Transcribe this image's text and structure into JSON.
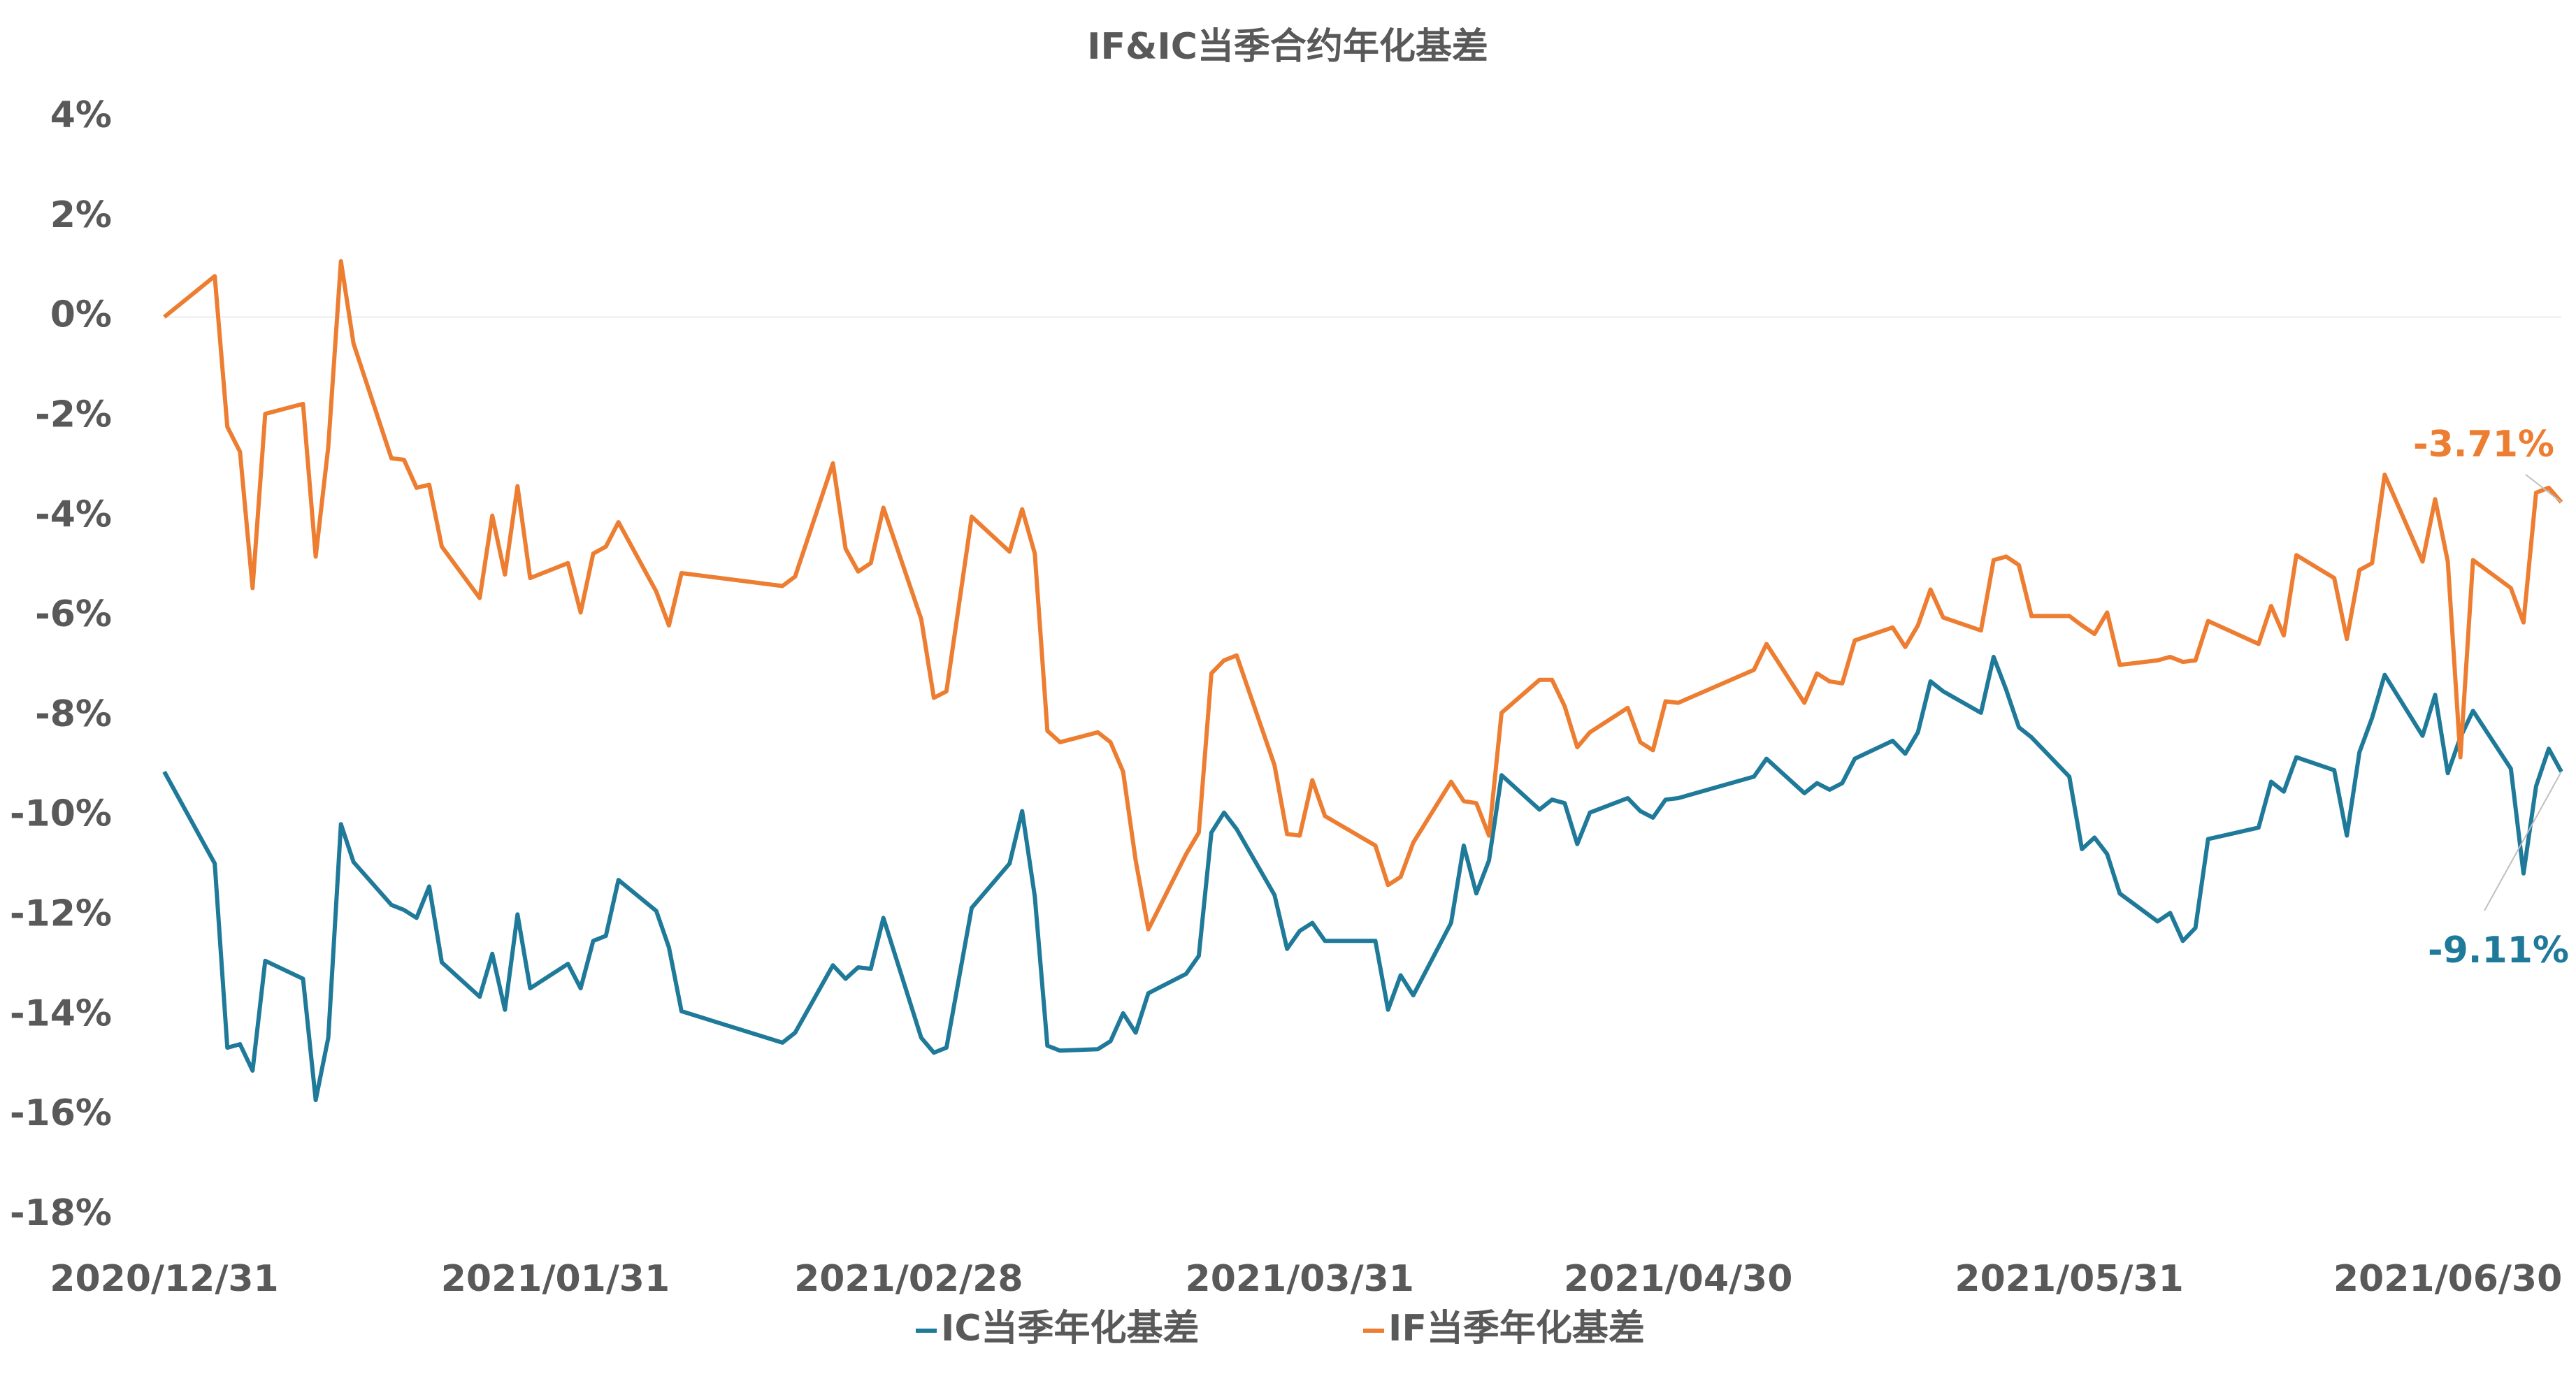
{
  "chart_data": {
    "type": "line",
    "title": "IF&IC当季合约年化基差",
    "x": [
      "2020/12/31",
      "2021/01/04",
      "2021/01/05",
      "2021/01/06",
      "2021/01/07",
      "2021/01/08",
      "2021/01/11",
      "2021/01/12",
      "2021/01/13",
      "2021/01/14",
      "2021/01/15",
      "2021/01/18",
      "2021/01/19",
      "2021/01/20",
      "2021/01/21",
      "2021/01/22",
      "2021/01/25",
      "2021/01/26",
      "2021/01/27",
      "2021/01/28",
      "2021/01/29",
      "2021/02/01",
      "2021/02/02",
      "2021/02/03",
      "2021/02/04",
      "2021/02/05",
      "2021/02/08",
      "2021/02/09",
      "2021/02/10",
      "2021/02/18",
      "2021/02/19",
      "2021/02/22",
      "2021/02/23",
      "2021/02/24",
      "2021/02/25",
      "2021/02/26",
      "2021/03/01",
      "2021/03/02",
      "2021/03/03",
      "2021/03/05",
      "2021/03/08",
      "2021/03/09",
      "2021/03/10",
      "2021/03/11",
      "2021/03/12",
      "2021/03/15",
      "2021/03/16",
      "2021/03/17",
      "2021/03/18",
      "2021/03/19",
      "2021/03/22",
      "2021/03/23",
      "2021/03/24",
      "2021/03/25",
      "2021/03/26",
      "2021/03/29",
      "2021/03/30",
      "2021/03/31",
      "2021/04/01",
      "2021/04/02",
      "2021/04/06",
      "2021/04/07",
      "2021/04/08",
      "2021/04/09",
      "2021/04/12",
      "2021/04/13",
      "2021/04/14",
      "2021/04/15",
      "2021/04/16",
      "2021/04/19",
      "2021/04/20",
      "2021/04/21",
      "2021/04/22",
      "2021/04/23",
      "2021/04/26",
      "2021/04/27",
      "2021/04/28",
      "2021/04/29",
      "2021/04/30",
      "2021/05/06",
      "2021/05/07",
      "2021/05/10",
      "2021/05/11",
      "2021/05/12",
      "2021/05/13",
      "2021/05/14",
      "2021/05/17",
      "2021/05/18",
      "2021/05/19",
      "2021/05/20",
      "2021/05/21",
      "2021/05/24",
      "2021/05/25",
      "2021/05/26",
      "2021/05/27",
      "2021/05/28",
      "2021/05/31",
      "2021/06/01",
      "2021/06/02",
      "2021/06/03",
      "2021/06/04",
      "2021/06/07",
      "2021/06/08",
      "2021/06/09",
      "2021/06/10",
      "2021/06/11",
      "2021/06/15",
      "2021/06/16",
      "2021/06/17",
      "2021/06/18",
      "2021/06/21",
      "2021/06/22",
      "2021/06/23",
      "2021/06/24",
      "2021/06/25",
      "2021/06/28",
      "2021/06/29",
      "2021/06/30",
      "2021/07/01",
      "2021/07/02",
      "2021/07/05",
      "2021/07/06",
      "2021/07/07",
      "2021/07/08",
      "2021/07/09"
    ],
    "series": [
      {
        "name": "IC当季年化基差",
        "color": "#1f7a99",
        "values": [
          -9.11,
          -10.95,
          -14.64,
          -14.57,
          -15.1,
          -12.9,
          -13.26,
          -15.69,
          -14.44,
          -10.16,
          -10.92,
          -11.78,
          -11.88,
          -12.04,
          -11.41,
          -12.93,
          -13.62,
          -12.76,
          -13.88,
          -11.97,
          -13.45,
          -12.96,
          -13.45,
          -12.5,
          -12.4,
          -11.28,
          -11.9,
          -12.63,
          -13.91,
          -14.54,
          -14.34,
          -12.99,
          -13.26,
          -13.03,
          -13.06,
          -12.04,
          -14.44,
          -14.74,
          -14.64,
          -11.84,
          -10.95,
          -9.9,
          -11.61,
          -14.6,
          -14.7,
          -14.67,
          -14.51,
          -13.95,
          -14.34,
          -13.55,
          -13.16,
          -12.8,
          -10.33,
          -9.93,
          -10.26,
          -11.58,
          -12.66,
          -12.3,
          -12.14,
          -12.5,
          -12.5,
          -13.88,
          -13.19,
          -13.59,
          -12.14,
          -10.59,
          -11.55,
          -10.89,
          -9.18,
          -9.87,
          -9.67,
          -9.74,
          -10.56,
          -9.93,
          -9.64,
          -9.9,
          -10.03,
          -9.67,
          -9.64,
          -9.21,
          -8.85,
          -9.54,
          -9.34,
          -9.47,
          -9.34,
          -8.85,
          -8.49,
          -8.75,
          -8.32,
          -7.3,
          -7.5,
          -7.93,
          -6.81,
          -7.47,
          -8.22,
          -8.42,
          -9.21,
          -10.66,
          -10.43,
          -10.76,
          -11.55,
          -12.11,
          -11.94,
          -12.5,
          -12.24,
          -10.46,
          -10.23,
          -9.31,
          -9.51,
          -8.82,
          -9.08,
          -10.39,
          -8.72,
          -8.03,
          -7.17,
          -8.39,
          -7.57,
          -9.14,
          -8.42,
          -7.89,
          -9.05,
          -11.15,
          -9.4,
          -8.65,
          -9.11
        ],
        "value_labels": [
          null,
          null,
          null,
          null,
          null,
          null,
          null,
          null,
          null,
          null,
          null,
          null,
          null,
          null,
          null,
          null,
          null,
          null,
          null,
          null,
          null,
          null,
          null,
          null,
          null,
          null,
          null,
          null,
          null,
          null,
          null,
          null,
          null,
          null,
          null,
          null,
          null,
          null,
          null,
          null,
          null,
          null,
          null,
          null,
          null,
          null,
          null,
          null,
          null,
          null,
          null,
          null,
          null,
          null,
          null,
          null,
          null,
          null,
          null,
          null,
          null,
          null,
          null,
          null,
          null,
          null,
          null,
          null,
          null,
          null,
          null,
          null,
          null,
          null,
          null,
          null,
          null,
          null,
          null,
          null,
          null,
          null,
          null,
          null,
          null,
          null,
          null,
          null,
          null,
          null,
          null,
          null,
          null,
          null,
          null,
          null,
          null,
          null,
          null,
          null,
          null,
          null,
          null,
          null,
          null,
          null,
          null,
          null,
          null,
          null,
          null,
          null,
          null,
          null,
          null,
          null,
          null,
          null,
          null,
          null,
          null,
          null,
          null,
          null,
          "-9.11%"
        ]
      },
      {
        "name": "IF当季年化基差",
        "color": "#ed7d31",
        "values": [
          0,
          0.82,
          -2.2,
          -2.7,
          -5.43,
          -1.94,
          -1.74,
          -4.8,
          -2.6,
          1.12,
          -0.53,
          -2.83,
          -2.86,
          -3.42,
          -3.36,
          -4.6,
          -5.63,
          -3.98,
          -5.16,
          -3.39,
          -5.23,
          -4.93,
          -5.92,
          -4.74,
          -4.6,
          -4.11,
          -5.5,
          -6.18,
          -5.13,
          -5.39,
          -5.2,
          -2.93,
          -4.64,
          -5.1,
          -4.93,
          -3.82,
          -6.05,
          -7.63,
          -7.5,
          -4.0,
          -4.7,
          -3.85,
          -4.74,
          -8.29,
          -8.52,
          -8.32,
          -8.52,
          -9.11,
          -10.89,
          -12.27,
          -10.76,
          -10.33,
          -7.14,
          -6.88,
          -6.78,
          -8.98,
          -10.36,
          -10.39,
          -9.28,
          -10.0,
          -10.59,
          -11.38,
          -11.22,
          -10.53,
          -9.31,
          -9.7,
          -9.74,
          -10.39,
          -7.93,
          -7.27,
          -7.27,
          -7.8,
          -8.62,
          -8.32,
          -7.83,
          -8.52,
          -8.68,
          -7.7,
          -7.73,
          -7.07,
          -6.55,
          -7.73,
          -7.14,
          -7.3,
          -7.34,
          -6.48,
          -6.22,
          -6.61,
          -6.18,
          -5.46,
          -6.02,
          -6.28,
          -4.87,
          -4.8,
          -4.97,
          -5.99,
          -5.99,
          -6.18,
          -6.35,
          -5.92,
          -6.97,
          -6.88,
          -6.81,
          -6.91,
          -6.88,
          -6.09,
          -6.55,
          -5.79,
          -6.38,
          -4.77,
          -5.23,
          -6.45,
          -5.07,
          -4.93,
          -3.16,
          -4.9,
          -3.65,
          -4.9,
          -8.82,
          -4.87,
          -5.43,
          -6.12,
          -3.52,
          -3.42,
          -3.71
        ],
        "value_labels": [
          null,
          null,
          null,
          null,
          null,
          null,
          null,
          null,
          null,
          null,
          null,
          null,
          null,
          null,
          null,
          null,
          null,
          null,
          null,
          null,
          null,
          null,
          null,
          null,
          null,
          null,
          null,
          null,
          null,
          null,
          null,
          null,
          null,
          null,
          null,
          null,
          null,
          null,
          null,
          null,
          null,
          null,
          null,
          null,
          null,
          null,
          null,
          null,
          null,
          null,
          null,
          null,
          null,
          null,
          null,
          null,
          null,
          null,
          null,
          null,
          null,
          null,
          null,
          null,
          null,
          null,
          null,
          null,
          null,
          null,
          null,
          null,
          null,
          null,
          null,
          null,
          null,
          null,
          null,
          null,
          null,
          null,
          null,
          null,
          null,
          null,
          null,
          null,
          null,
          null,
          null,
          null,
          null,
          null,
          null,
          null,
          null,
          null,
          null,
          null,
          null,
          null,
          null,
          null,
          null,
          null,
          null,
          null,
          null,
          null,
          null,
          null,
          null,
          null,
          null,
          null,
          null,
          null,
          null,
          null,
          null,
          null,
          null,
          null,
          "-3.71%"
        ]
      }
    ],
    "xlim": [
      "2020/12/31",
      "2021/07/09"
    ],
    "xticks": [
      "2020/12/31",
      "2021/01/31",
      "2021/02/28",
      "2021/03/31",
      "2021/04/30",
      "2021/05/31",
      "2021/06/30"
    ],
    "ylim": [
      -18,
      4
    ],
    "yticks": [
      {
        "value": 4,
        "label": "4%"
      },
      {
        "value": 2,
        "label": "2%"
      },
      {
        "value": 0,
        "label": "0%"
      },
      {
        "value": -2,
        "label": "-2%"
      },
      {
        "value": -4,
        "label": "-4%"
      },
      {
        "value": -6,
        "label": "-6%"
      },
      {
        "value": -8,
        "label": "-8%"
      },
      {
        "value": -10,
        "label": "-10%"
      },
      {
        "value": -12,
        "label": "-12%"
      },
      {
        "value": -14,
        "label": "-14%"
      },
      {
        "value": -16,
        "label": "-16%"
      },
      {
        "value": -18,
        "label": "-18%"
      }
    ],
    "grid": false,
    "zero_line": true,
    "legend": "bottom"
  }
}
